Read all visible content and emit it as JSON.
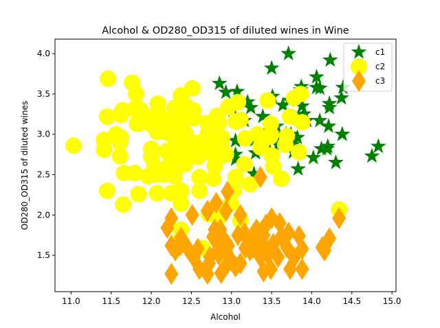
{
  "chart_data": {
    "type": "scatter",
    "title": "Alcohol & OD280_OD315 of diluted wines in Wine",
    "xlabel": "Alcohol",
    "ylabel": "OD280_OD315 of diluted wines",
    "xlim": [
      10.8,
      15.05
    ],
    "ylim": [
      1.05,
      4.18
    ],
    "xticks": [
      11.0,
      11.5,
      12.0,
      12.5,
      13.0,
      13.5,
      14.0,
      14.5,
      15.0
    ],
    "xtick_labels": [
      "11.0",
      "11.5",
      "12.0",
      "12.5",
      "13.0",
      "13.5",
      "14.0",
      "14.5",
      "15.0"
    ],
    "yticks": [
      1.5,
      2.0,
      2.5,
      3.0,
      3.5,
      4.0
    ],
    "ytick_labels": [
      "1.5",
      "2.0",
      "2.5",
      "3.0",
      "3.5",
      "4.0"
    ],
    "grid": false,
    "legend_position": "top-right",
    "series": [
      {
        "name": "c1",
        "marker": "star",
        "color": "#008000",
        "points": [
          [
            14.23,
            3.92
          ],
          [
            13.2,
            3.4
          ],
          [
            13.16,
            3.17
          ],
          [
            14.37,
            3.45
          ],
          [
            13.24,
            2.93
          ],
          [
            14.2,
            2.85
          ],
          [
            14.39,
            3.58
          ],
          [
            14.06,
            3.58
          ],
          [
            14.83,
            2.85
          ],
          [
            13.86,
            3.55
          ],
          [
            14.1,
            3.17
          ],
          [
            14.12,
            2.82
          ],
          [
            13.75,
            2.9
          ],
          [
            14.75,
            2.73
          ],
          [
            14.38,
            3.0
          ],
          [
            13.63,
            2.88
          ],
          [
            14.3,
            2.65
          ],
          [
            13.83,
            2.57
          ],
          [
            14.19,
            2.82
          ],
          [
            13.64,
            3.36
          ],
          [
            14.06,
            3.71
          ],
          [
            12.93,
            3.52
          ],
          [
            13.71,
            4.0
          ],
          [
            12.85,
            3.63
          ],
          [
            13.5,
            3.82
          ],
          [
            13.05,
            3.2
          ],
          [
            13.39,
            3.22
          ],
          [
            13.3,
            2.77
          ],
          [
            13.87,
            3.59
          ],
          [
            14.02,
            2.71
          ],
          [
            13.73,
            2.88
          ],
          [
            13.58,
            2.87
          ],
          [
            13.68,
            3.0
          ],
          [
            13.76,
            2.87
          ],
          [
            13.51,
            3.47
          ],
          [
            13.48,
            2.78
          ],
          [
            13.28,
            2.51
          ],
          [
            13.05,
            2.69
          ],
          [
            13.07,
            3.53
          ],
          [
            14.22,
            3.38
          ],
          [
            13.56,
            3.0
          ],
          [
            13.41,
            3.0
          ],
          [
            13.88,
            3.35
          ],
          [
            13.24,
            3.33
          ],
          [
            13.05,
            2.75
          ],
          [
            14.21,
            3.1
          ],
          [
            14.38,
            3.0
          ],
          [
            13.9,
            3.25
          ],
          [
            14.1,
            3.57
          ],
          [
            13.94,
            3.17
          ],
          [
            13.05,
            2.92
          ],
          [
            13.83,
            3.2
          ],
          [
            13.82,
            2.96
          ],
          [
            13.77,
            2.78
          ],
          [
            13.74,
            3.0
          ],
          [
            13.56,
            3.1
          ],
          [
            14.22,
            3.33
          ],
          [
            13.29,
            2.93
          ],
          [
            13.72,
            3.42
          ]
        ]
      },
      {
        "name": "c2",
        "marker": "circle",
        "color": "#ffff00",
        "points": [
          [
            12.37,
            1.82
          ],
          [
            12.33,
            1.67
          ],
          [
            12.64,
            1.59
          ],
          [
            13.67,
            2.87
          ],
          [
            12.37,
            2.3
          ],
          [
            12.17,
            3.18
          ],
          [
            12.37,
            3.48
          ],
          [
            13.11,
            1.93
          ],
          [
            12.37,
            3.07
          ],
          [
            13.34,
            1.82
          ],
          [
            12.21,
            3.16
          ],
          [
            12.29,
            2.78
          ],
          [
            13.86,
            3.5
          ],
          [
            13.49,
            3.13
          ],
          [
            12.99,
            2.14
          ],
          [
            11.96,
            2.48
          ],
          [
            11.66,
            2.52
          ],
          [
            13.03,
            2.31
          ],
          [
            11.84,
            3.13
          ],
          [
            12.33,
            3.12
          ],
          [
            12.7,
            3.14
          ],
          [
            12.0,
            2.72
          ],
          [
            12.72,
            2.01
          ],
          [
            12.08,
            3.08
          ],
          [
            13.05,
            3.16
          ],
          [
            11.84,
            2.26
          ],
          [
            12.67,
            2.78
          ],
          [
            12.16,
            2.5
          ],
          [
            11.65,
            2.13
          ],
          [
            11.64,
            3.3
          ],
          [
            12.08,
            3.27
          ],
          [
            12.08,
            2.5
          ],
          [
            12.0,
            3.19
          ],
          [
            12.69,
            2.87
          ],
          [
            12.29,
            3.33
          ],
          [
            11.62,
            2.96
          ],
          [
            12.47,
            2.78
          ],
          [
            11.81,
            3.5
          ],
          [
            12.29,
            3.13
          ],
          [
            12.37,
            2.14
          ],
          [
            12.29,
            2.48
          ],
          [
            12.08,
            2.52
          ],
          [
            12.6,
            2.3
          ],
          [
            12.34,
            2.72
          ],
          [
            11.82,
            3.13
          ],
          [
            12.51,
            3.57
          ],
          [
            12.42,
            2.8
          ],
          [
            12.25,
            2.66
          ],
          [
            12.72,
            2.84
          ],
          [
            12.22,
            2.61
          ],
          [
            11.61,
            2.9
          ],
          [
            11.46,
            3.69
          ],
          [
            12.52,
            3.3
          ],
          [
            11.76,
            3.64
          ],
          [
            11.41,
            2.93
          ],
          [
            12.08,
            3.38
          ],
          [
            11.03,
            2.86
          ],
          [
            11.82,
            3.33
          ],
          [
            12.42,
            2.87
          ],
          [
            12.77,
            2.07
          ],
          [
            12.0,
            2.82
          ],
          [
            11.45,
            3.22
          ],
          [
            11.56,
            3.0
          ],
          [
            12.42,
            2.63
          ],
          [
            13.05,
            2.47
          ],
          [
            11.87,
            3.3
          ],
          [
            12.07,
            3.03
          ],
          [
            12.43,
            3.35
          ],
          [
            11.79,
            3.31
          ],
          [
            12.37,
            3.07
          ],
          [
            12.04,
            2.51
          ],
          [
            12.86,
            2.78
          ],
          [
            12.88,
            2.96
          ],
          [
            12.81,
            2.67
          ],
          [
            12.7,
            3.0
          ],
          [
            12.51,
            3.2
          ],
          [
            12.6,
            2.47
          ],
          [
            12.25,
            2.75
          ],
          [
            12.53,
            3.2
          ],
          [
            13.49,
            3.0
          ],
          [
            12.84,
            3.14
          ],
          [
            12.93,
            2.75
          ],
          [
            13.36,
            2.84
          ],
          [
            13.52,
            2.6
          ],
          [
            13.62,
            2.45
          ],
          [
            12.25,
            2.27
          ],
          [
            13.16,
            2.63
          ],
          [
            13.88,
            3.15
          ],
          [
            12.87,
            2.87
          ],
          [
            13.32,
            3.0
          ],
          [
            13.08,
            3.4
          ],
          [
            13.5,
            2.74
          ],
          [
            12.79,
            2.61
          ],
          [
            13.11,
            3.18
          ],
          [
            13.23,
            2.38
          ],
          [
            12.58,
            2.72
          ],
          [
            13.17,
            2.95
          ],
          [
            13.84,
            2.78
          ],
          [
            12.45,
            2.93
          ],
          [
            14.34,
            2.07
          ],
          [
            13.48,
            2.97
          ],
          [
            12.36,
            2.74
          ],
          [
            13.69,
            2.98
          ],
          [
            12.85,
            2.88
          ],
          [
            12.96,
            3.34
          ],
          [
            13.78,
            3.45
          ],
          [
            13.73,
            3.22
          ],
          [
            13.45,
            3.42
          ],
          [
            12.82,
            3.23
          ],
          [
            12.19,
            2.79
          ],
          [
            11.41,
            2.81
          ],
          [
            11.62,
            3.24
          ],
          [
            12.2,
            3.02
          ],
          [
            12.77,
            2.45
          ],
          [
            11.61,
            2.73
          ],
          [
            12.6,
            2.9
          ],
          [
            11.45,
            2.3
          ],
          [
            12.0,
            3.12
          ],
          [
            12.37,
            2.3
          ],
          [
            12.07,
            2.27
          ],
          [
            12.16,
            3.05
          ],
          [
            12.29,
            2.95
          ],
          [
            12.86,
            1.99
          ],
          [
            12.43,
            3.0
          ],
          [
            11.79,
            2.52
          ],
          [
            12.37,
            3.0
          ],
          [
            12.04,
            2.6
          ],
          [
            12.33,
            3.2
          ],
          [
            12.04,
            2.6
          ]
        ]
      },
      {
        "name": "c3",
        "marker": "diamond",
        "color": "#ffa500",
        "points": [
          [
            12.86,
            1.82
          ],
          [
            12.88,
            1.59
          ],
          [
            12.81,
            2.15
          ],
          [
            12.7,
            2.05
          ],
          [
            12.51,
            2.0
          ],
          [
            12.6,
            1.33
          ],
          [
            12.25,
            1.62
          ],
          [
            12.53,
            1.47
          ],
          [
            13.49,
            1.33
          ],
          [
            12.84,
            1.51
          ],
          [
            12.93,
            1.55
          ],
          [
            13.36,
            1.48
          ],
          [
            13.52,
            1.64
          ],
          [
            13.62,
            1.73
          ],
          [
            12.25,
            1.96
          ],
          [
            13.16,
            1.78
          ],
          [
            13.88,
            1.58
          ],
          [
            12.87,
            1.75
          ],
          [
            13.32,
            1.68
          ],
          [
            13.08,
            1.75
          ],
          [
            13.5,
            1.96
          ],
          [
            12.79,
            1.82
          ],
          [
            13.11,
            2.0
          ],
          [
            13.23,
            1.56
          ],
          [
            12.58,
            1.58
          ],
          [
            13.17,
            1.59
          ],
          [
            13.84,
            1.74
          ],
          [
            12.45,
            1.59
          ],
          [
            14.34,
            1.96
          ],
          [
            13.48,
            1.56
          ],
          [
            12.36,
            1.62
          ],
          [
            13.69,
            1.6
          ],
          [
            12.85,
            1.63
          ],
          [
            12.96,
            1.62
          ],
          [
            13.78,
            1.47
          ],
          [
            13.73,
            1.33
          ],
          [
            13.45,
            1.51
          ],
          [
            12.82,
            1.55
          ],
          [
            13.58,
            1.48
          ],
          [
            13.4,
            1.64
          ],
          [
            12.2,
            1.84
          ],
          [
            12.77,
            1.73
          ],
          [
            14.16,
            1.56
          ],
          [
            13.71,
            1.78
          ],
          [
            13.4,
            1.75
          ],
          [
            13.27,
            1.68
          ],
          [
            13.17,
            1.75
          ],
          [
            14.13,
            1.6
          ],
          [
            12.25,
            1.27
          ],
          [
            13.05,
            1.36
          ],
          [
            12.72,
            1.4
          ],
          [
            12.93,
            2.05
          ],
          [
            13.27,
            1.6
          ],
          [
            12.87,
            1.28
          ],
          [
            13.11,
            1.4
          ],
          [
            13.36,
            2.47
          ],
          [
            13.62,
            1.73
          ],
          [
            13.4,
            1.3
          ],
          [
            13.88,
            1.33
          ],
          [
            12.7,
            1.27
          ],
          [
            12.95,
            2.29
          ],
          [
            14.22,
            1.71
          ],
          [
            12.95,
            1.4
          ],
          [
            13.43,
            1.88
          ],
          [
            12.37,
            1.72
          ],
          [
            12.3,
            1.56
          ],
          [
            12.73,
            1.48
          ],
          [
            13.0,
            1.43
          ],
          [
            13.31,
            1.82
          ],
          [
            13.6,
            1.9
          ]
        ]
      }
    ]
  }
}
